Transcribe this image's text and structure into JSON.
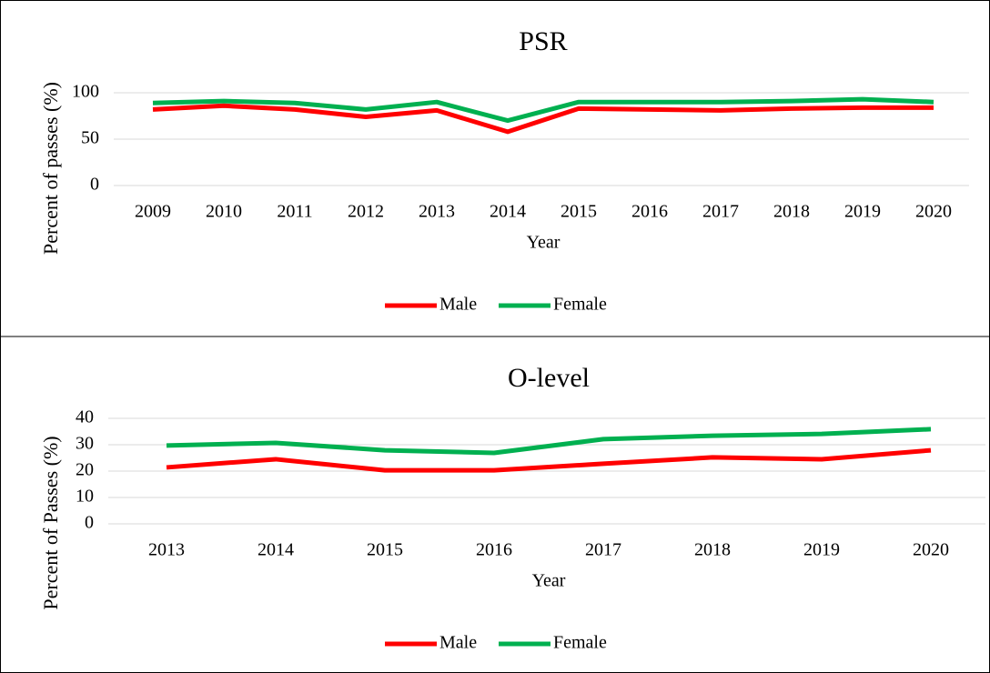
{
  "chart_data": [
    {
      "type": "line",
      "title": "PSR",
      "x_label": "Year",
      "y_label": "Percent of passes (%)",
      "categories": [
        "2009",
        "2010",
        "2011",
        "2012",
        "2013",
        "2014",
        "2015",
        "2016",
        "2017",
        "2018",
        "2019",
        "2020"
      ],
      "series": [
        {
          "name": "Male",
          "color": "#ff0000",
          "values": [
            82,
            86,
            82,
            74,
            81,
            58,
            83,
            82,
            81,
            83,
            84,
            84
          ]
        },
        {
          "name": "Female",
          "color": "#00b050",
          "values": [
            89,
            91,
            89,
            82,
            90,
            70,
            90,
            90,
            90,
            91,
            93,
            90
          ]
        }
      ],
      "ylim": [
        0,
        100
      ],
      "yticks": [
        0,
        50,
        100
      ],
      "grid": true,
      "legend": "bottom"
    },
    {
      "type": "line",
      "title": "O-level",
      "x_label": "Year",
      "y_label": "Percent of Passes (%)",
      "categories": [
        "2013",
        "2014",
        "2015",
        "2016",
        "2017",
        "2018",
        "2019",
        "2020"
      ],
      "series": [
        {
          "name": "Male",
          "color": "#ff0000",
          "values": [
            21.4,
            24.5,
            20.3,
            20.3,
            22.8,
            25.2,
            24.5,
            27.9
          ]
        },
        {
          "name": "Female",
          "color": "#00b050",
          "values": [
            29.7,
            30.7,
            27.9,
            26.9,
            32.1,
            33.4,
            34.1,
            35.9
          ]
        }
      ],
      "ylim": [
        0,
        40
      ],
      "yticks": [
        0,
        10,
        20,
        30,
        40
      ],
      "grid": true,
      "legend": "bottom"
    }
  ]
}
